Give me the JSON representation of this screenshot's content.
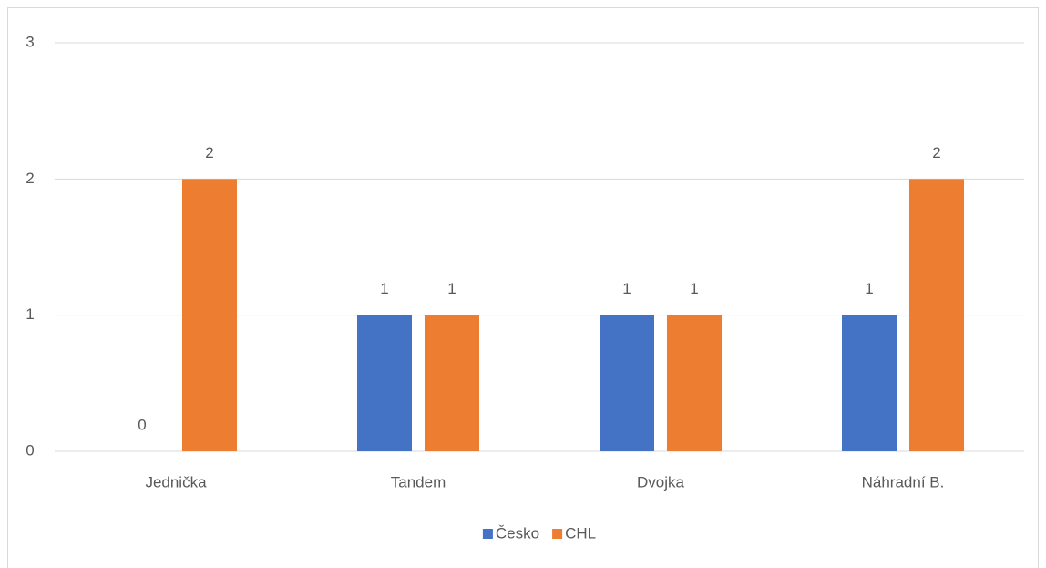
{
  "chart_data": {
    "type": "bar",
    "categories": [
      "Jednička",
      "Tandem",
      "Dvojka",
      "Náhradní B."
    ],
    "series": [
      {
        "name": "Česko",
        "color": "#4472c4",
        "values": [
          0,
          1,
          1,
          1
        ]
      },
      {
        "name": "CHL",
        "color": "#ed7d31",
        "values": [
          2,
          1,
          1,
          2
        ]
      }
    ],
    "ylim": [
      0,
      3
    ],
    "yticks": [
      0,
      1,
      2,
      3
    ],
    "grid": true,
    "legend": "bottom"
  }
}
